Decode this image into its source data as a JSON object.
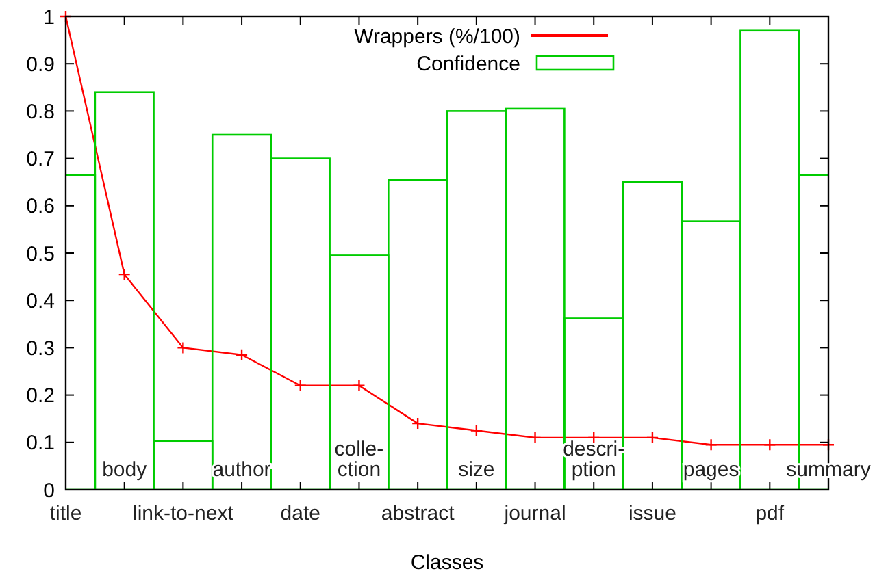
{
  "chart_data": {
    "type": "bar",
    "xlabel": "Classes",
    "categories": [
      "title",
      "body",
      "link-to-next",
      "author",
      "date",
      "colle-\nction",
      "abstract",
      "size",
      "journal",
      "descri-\nption",
      "issue",
      "pages",
      "pdf",
      "summary"
    ],
    "series": [
      {
        "name": "Wrappers (%/100)",
        "type": "line",
        "color": "#ff0000",
        "marker": "cross",
        "line_style": "solid",
        "values": [
          1.0,
          0.455,
          0.3,
          0.285,
          0.22,
          0.22,
          0.14,
          0.125,
          0.11,
          0.11,
          0.11,
          0.095,
          0.095,
          0.095
        ]
      },
      {
        "name": "Confidence",
        "color": "#00cc00",
        "values": [
          0.665,
          0.84,
          0.103,
          0.75,
          0.7,
          0.495,
          0.655,
          0.8,
          0.805,
          0.362,
          0.65,
          0.567,
          0.97,
          0.665
        ]
      }
    ],
    "ylim": [
      0,
      1
    ],
    "yticks": [
      0,
      0.1,
      0.2,
      0.3,
      0.4,
      0.5,
      0.6,
      0.7,
      0.8,
      0.9,
      1
    ],
    "grid": false,
    "legend": "top"
  }
}
